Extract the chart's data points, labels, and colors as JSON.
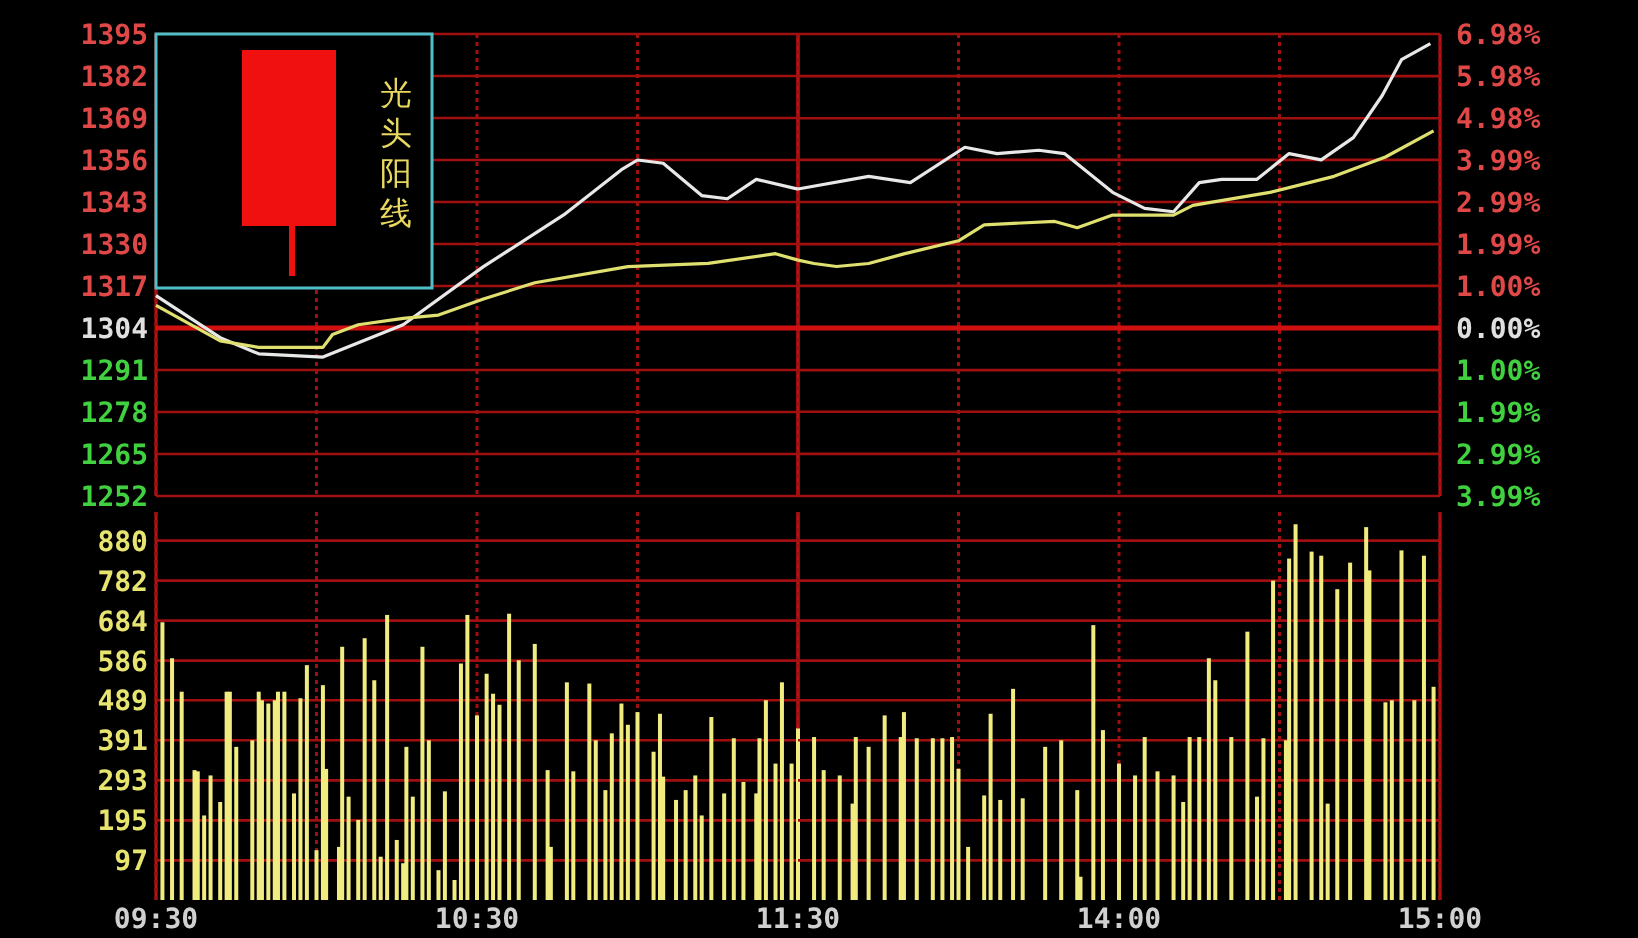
{
  "chart_data": [
    {
      "type": "line",
      "xlim": [
        9.5,
        11.5
      ],
      "xticks": [
        {
          "value": 9.5,
          "label": null
        },
        {
          "value": 10,
          "label": null
        },
        {
          "value": 10.5,
          "label": null
        },
        {
          "value": 11,
          "label": null
        },
        {
          "value": 11.5,
          "label": null
        }
      ],
      "ylim": [
        1252,
        1395
      ],
      "yticks": [
        1252,
        1265,
        1278,
        1291,
        1304,
        1317,
        1330,
        1343,
        1356,
        1369,
        1382,
        1395
      ],
      "grid": true,
      "tick_labels": "y",
      "ref_lines": [
        {
          "axis": "y",
          "value": 1304,
          "color": "#d01010"
        }
      ],
      "annotations": [
        "光头阳线"
      ],
      "series": [
        {
          "color": "#e8e8e8",
          "x": [
            9.5,
            9.7,
            9.82,
            10.02,
            10.27,
            10.52,
            10.77,
            10.95,
            11.0,
            11.08,
            11.2,
            11.28,
            11.37,
            11.5
          ],
          "values": [
            1314,
            1301,
            1296,
            1295,
            1305,
            1323,
            1339,
            1353,
            1356,
            1355,
            1345,
            1344,
            1350,
            1347
          ]
        },
        {
          "color": "#e0e070",
          "x": [
            9.5,
            9.7,
            9.82,
            10.02,
            10.05,
            10.13,
            10.27,
            10.38,
            10.52,
            10.68,
            10.97,
            11.22,
            11.43,
            11.5
          ],
          "values": [
            1311,
            1300,
            1298,
            1298,
            1302,
            1305,
            1307,
            1308,
            1313,
            1318,
            1323,
            1324,
            1327,
            1325
          ]
        }
      ]
    },
    {
      "type": "line",
      "xlim": [
        13,
        15
      ],
      "xticks": [
        {
          "value": 13.5,
          "label": null
        },
        {
          "value": 14,
          "label": null
        },
        {
          "value": 14.5,
          "label": null
        },
        {
          "value": 15,
          "label": null
        }
      ],
      "y2lim": [
        -3.99,
        6.98
      ],
      "y2ticks": [
        {
          "value": -3.99,
          "label": "3.99%"
        },
        {
          "value": -2.99,
          "label": "2.99%"
        },
        {
          "value": -1.99,
          "label": "1.99%"
        },
        {
          "value": -1.0,
          "label": "1.00%"
        },
        {
          "value": 0,
          "label": "0.00%"
        },
        {
          "value": 1.0,
          "label": "1.00%"
        },
        {
          "value": 1.99,
          "label": "1.99%"
        },
        {
          "value": 2.99,
          "label": "2.99%"
        },
        {
          "value": 3.99,
          "label": "3.99%"
        },
        {
          "value": 4.98,
          "label": "4.98%"
        },
        {
          "value": 5.98,
          "label": "5.98%"
        },
        {
          "value": 6.98,
          "label": "6.98%"
        }
      ],
      "grid": true,
      "tick_labels": "y",
      "ref_lines": [
        {
          "axis": "y2",
          "value": 0,
          "color": "#d01010"
        }
      ],
      "series": [
        {
          "color": "#e8e8e8",
          "axis": "y2",
          "x": [
            13.0,
            13.22,
            13.35,
            13.52,
            13.62,
            13.75,
            13.83,
            13.98,
            14.08,
            14.17,
            14.25,
            14.32,
            14.43,
            14.53,
            14.63,
            14.73,
            14.82,
            14.88,
            14.97
          ],
          "values": [
            3.3,
            3.6,
            3.45,
            4.29,
            4.14,
            4.22,
            4.14,
            3.22,
            2.84,
            2.76,
            3.45,
            3.53,
            3.53,
            4.14,
            3.99,
            4.52,
            5.52,
            6.37,
            6.75
          ]
        },
        {
          "color": "#e0e070",
          "axis": "y2",
          "x": [
            13.0,
            13.05,
            13.12,
            13.22,
            13.33,
            13.5,
            13.58,
            13.8,
            13.87,
            13.98,
            14.17,
            14.23,
            14.47,
            14.67,
            14.83,
            14.98
          ],
          "values": [
            1.61,
            1.53,
            1.46,
            1.53,
            1.76,
            2.07,
            2.45,
            2.53,
            2.38,
            2.68,
            2.68,
            2.91,
            3.22,
            3.6,
            4.06,
            4.68
          ]
        }
      ]
    },
    {
      "type": "bar",
      "color": "#f0ec80",
      "xlim": [
        9.5,
        11.5
      ],
      "xticks": [
        {
          "value": 9.5,
          "label": "09:30"
        },
        {
          "value": 10,
          "label": null
        },
        {
          "value": 10.5,
          "label": "10:30"
        },
        {
          "value": 11,
          "label": null
        },
        {
          "value": 11.5,
          "label": "11:30"
        }
      ],
      "ylim": [
        0,
        950
      ],
      "yticks": [
        97,
        195,
        293,
        391,
        489,
        586,
        684,
        782,
        880
      ],
      "grid": true,
      "x": [
        9.52,
        9.55,
        9.58,
        9.62,
        9.63,
        9.65,
        9.67,
        9.7,
        9.72,
        9.73,
        9.75,
        9.8,
        9.82,
        9.83,
        9.85,
        9.87,
        9.88,
        9.9,
        9.93,
        9.95,
        9.97,
        10.0,
        10.02,
        10.03,
        10.07,
        10.08,
        10.1,
        10.13,
        10.15,
        10.18,
        10.2,
        10.22,
        10.25,
        10.27,
        10.28,
        10.3,
        10.33,
        10.35,
        10.38,
        10.4,
        10.43,
        10.45,
        10.47,
        10.5,
        10.53,
        10.55,
        10.57,
        10.6,
        10.63,
        10.68,
        10.72,
        10.73,
        10.78,
        10.8,
        10.85,
        10.87,
        10.9,
        10.92,
        10.95,
        10.97,
        11.0,
        11.05,
        11.07,
        11.08,
        11.12,
        11.15,
        11.18,
        11.2,
        11.23,
        11.27,
        11.3,
        11.33,
        11.37,
        11.38,
        11.4,
        11.43,
        11.45,
        11.48,
        11.5
      ],
      "values": [
        680,
        592,
        510,
        318,
        315,
        207,
        305,
        240,
        510,
        510,
        375,
        391,
        510,
        489,
        481,
        489,
        510,
        510,
        261,
        494,
        575,
        122,
        526,
        321,
        130,
        620,
        253,
        196,
        641,
        538,
        106,
        698,
        147,
        90,
        375,
        253,
        620,
        391,
        73,
        266,
        49,
        579,
        698,
        452,
        554,
        505,
        478,
        701,
        587,
        627,
        318,
        130,
        533,
        315,
        530,
        391,
        269,
        408,
        481,
        429,
        460,
        363,
        456,
        302,
        245,
        269,
        305,
        207,
        448,
        261,
        396,
        289,
        261,
        396,
        489,
        334,
        533,
        334,
        420
      ]
    },
    {
      "type": "bar",
      "color": "#f0ec80",
      "xlim": [
        13,
        15
      ],
      "xticks": [
        {
          "value": 13.5,
          "label": null
        },
        {
          "value": 14,
          "label": "14:00"
        },
        {
          "value": 14.5,
          "label": null
        },
        {
          "value": 15,
          "label": "15:00"
        }
      ],
      "ylim": [
        0,
        950
      ],
      "yticks": [
        {
          "value": 97,
          "label": null
        },
        {
          "value": 195,
          "label": null
        },
        {
          "value": 293,
          "label": null
        },
        {
          "value": 391,
          "label": null
        },
        {
          "value": 489,
          "label": null
        },
        {
          "value": 586,
          "label": null
        },
        {
          "value": 684,
          "label": null
        },
        {
          "value": 782,
          "label": null
        },
        {
          "value": 880,
          "label": null
        }
      ],
      "grid": true,
      "tick_labels": "x",
      "x": [
        13.05,
        13.08,
        13.13,
        13.17,
        13.18,
        13.22,
        13.27,
        13.32,
        13.33,
        13.37,
        13.42,
        13.45,
        13.48,
        13.5,
        13.53,
        13.58,
        13.6,
        13.63,
        13.67,
        13.7,
        13.77,
        13.82,
        13.87,
        13.88,
        13.92,
        13.95,
        14.0,
        14.05,
        14.08,
        14.12,
        14.17,
        14.2,
        14.22,
        14.25,
        14.28,
        14.3,
        14.35,
        14.4,
        14.43,
        14.45,
        14.48,
        14.52,
        14.53,
        14.55,
        14.6,
        14.63,
        14.65,
        14.68,
        14.72,
        14.77,
        14.78,
        14.83,
        14.85,
        14.88,
        14.92,
        14.95,
        14.98
      ],
      "values": [
        399,
        318,
        305,
        236,
        399,
        375,
        452,
        399,
        460,
        396,
        396,
        396,
        399,
        321,
        130,
        256,
        456,
        245,
        517,
        249,
        375,
        391,
        269,
        57,
        673,
        416,
        334,
        305,
        399,
        315,
        305,
        240,
        399,
        399,
        592,
        538,
        399,
        657,
        253,
        396,
        782,
        391,
        836,
        920,
        853,
        843,
        236,
        761,
        826,
        913,
        807,
        484,
        489,
        856,
        489,
        843,
        522
      ]
    }
  ]
}
